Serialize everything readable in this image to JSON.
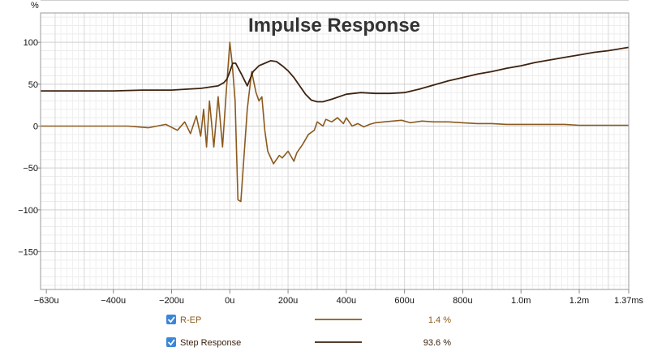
{
  "chart_data": {
    "type": "line",
    "title": "Impulse Response",
    "ylabel": "%",
    "xlabel": "",
    "x_unit_note": "time in seconds (tick labels in u = microseconds, m = milliseconds)",
    "xlim": [
      -0.00065,
      0.00137
    ],
    "ylim": [
      -195,
      135
    ],
    "x_ticks": [
      {
        "value": -0.00063,
        "label": "−630u"
      },
      {
        "value": -0.0004,
        "label": "−400u"
      },
      {
        "value": -0.0002,
        "label": "−200u"
      },
      {
        "value": 0.0,
        "label": "0u"
      },
      {
        "value": 0.0002,
        "label": "200u"
      },
      {
        "value": 0.0004,
        "label": "400u"
      },
      {
        "value": 0.0006,
        "label": "600u"
      },
      {
        "value": 0.0008,
        "label": "800u"
      },
      {
        "value": 0.001,
        "label": "1.0m"
      },
      {
        "value": 0.0012,
        "label": "1.2m"
      },
      {
        "value": 0.00137,
        "label": "1.37ms"
      }
    ],
    "y_ticks": [
      {
        "value": 100,
        "label": "100"
      },
      {
        "value": 50,
        "label": "50"
      },
      {
        "value": 0,
        "label": "0"
      },
      {
        "value": -50,
        "label": "−50"
      },
      {
        "value": -100,
        "label": "−100"
      },
      {
        "value": -150,
        "label": "−150"
      }
    ],
    "grid": true,
    "legend_position": "bottom",
    "series": [
      {
        "name": "R-EP",
        "checked": true,
        "value_label": "1.4 %",
        "color": "#8b5a1e",
        "x": [
          -0.00065,
          -0.00055,
          -0.00045,
          -0.00035,
          -0.00028,
          -0.00022,
          -0.00018,
          -0.000155,
          -0.000135,
          -0.000115,
          -0.0001,
          -9e-05,
          -8e-05,
          -7e-05,
          -5.5e-05,
          -4e-05,
          -2.5e-05,
          -1.2e-05,
          0.0,
          8e-06,
          1.8e-05,
          2.8e-05,
          3.8e-05,
          4.8e-05,
          6e-05,
          7.5e-05,
          9e-05,
          0.0001,
          0.00011,
          0.00012,
          0.00013,
          0.00015,
          0.00017,
          0.00018,
          0.0002,
          0.00022,
          0.00023,
          0.00025,
          0.00027,
          0.00029,
          0.0003,
          0.00032,
          0.00033,
          0.00035,
          0.00037,
          0.00039,
          0.0004,
          0.00042,
          0.00044,
          0.00046,
          0.00048,
          0.0005,
          0.00053,
          0.00056,
          0.00059,
          0.00062,
          0.00066,
          0.0007,
          0.00075,
          0.0008,
          0.00085,
          0.0009,
          0.00095,
          0.001,
          0.00105,
          0.0011,
          0.00115,
          0.0012,
          0.00125,
          0.0013,
          0.00137
        ],
        "y": [
          0,
          0,
          0,
          0,
          -2,
          2,
          -5,
          5,
          -9,
          12,
          -12,
          20,
          -25,
          30,
          -25,
          35,
          -25,
          42,
          100,
          75,
          30,
          -88,
          -90,
          -40,
          20,
          65,
          40,
          30,
          35,
          -5,
          -30,
          -45,
          -35,
          -38,
          -30,
          -42,
          -32,
          -22,
          -10,
          -5,
          5,
          0,
          8,
          5,
          10,
          3,
          10,
          0,
          3,
          -1,
          2,
          4,
          5,
          6,
          7,
          4,
          6,
          5,
          5,
          4,
          3,
          3,
          2,
          2,
          2,
          2,
          2,
          1,
          1,
          1,
          1
        ]
      },
      {
        "name": "Step Response",
        "checked": true,
        "value_label": "93.6 %",
        "color": "#3d2310",
        "x": [
          -0.00065,
          -0.0006,
          -0.0005,
          -0.0004,
          -0.0003,
          -0.0002,
          -0.00015,
          -0.0001,
          -8e-05,
          -6e-05,
          -4e-05,
          -2e-05,
          -1e-05,
          0.0,
          1e-05,
          2e-05,
          4e-05,
          6e-05,
          8e-05,
          0.0001,
          0.00012,
          0.00014,
          0.00016,
          0.00018,
          0.0002,
          0.00022,
          0.00024,
          0.00026,
          0.00028,
          0.0003,
          0.00032,
          0.00035,
          0.0004,
          0.00045,
          0.0005,
          0.00055,
          0.0006,
          0.00065,
          0.0007,
          0.00075,
          0.0008,
          0.00085,
          0.0009,
          0.00095,
          0.001,
          0.00105,
          0.0011,
          0.00115,
          0.0012,
          0.00125,
          0.0013,
          0.00137
        ],
        "y": [
          42,
          42,
          42,
          42,
          43,
          43,
          44,
          45,
          46,
          47,
          48,
          52,
          56,
          65,
          75,
          75,
          62,
          48,
          65,
          72,
          75,
          78,
          77,
          72,
          66,
          58,
          48,
          38,
          31,
          29,
          29,
          32,
          38,
          40,
          39,
          39,
          40,
          44,
          49,
          54,
          58,
          62,
          65,
          69,
          72,
          76,
          79,
          82,
          85,
          88,
          90,
          94
        ]
      }
    ]
  }
}
